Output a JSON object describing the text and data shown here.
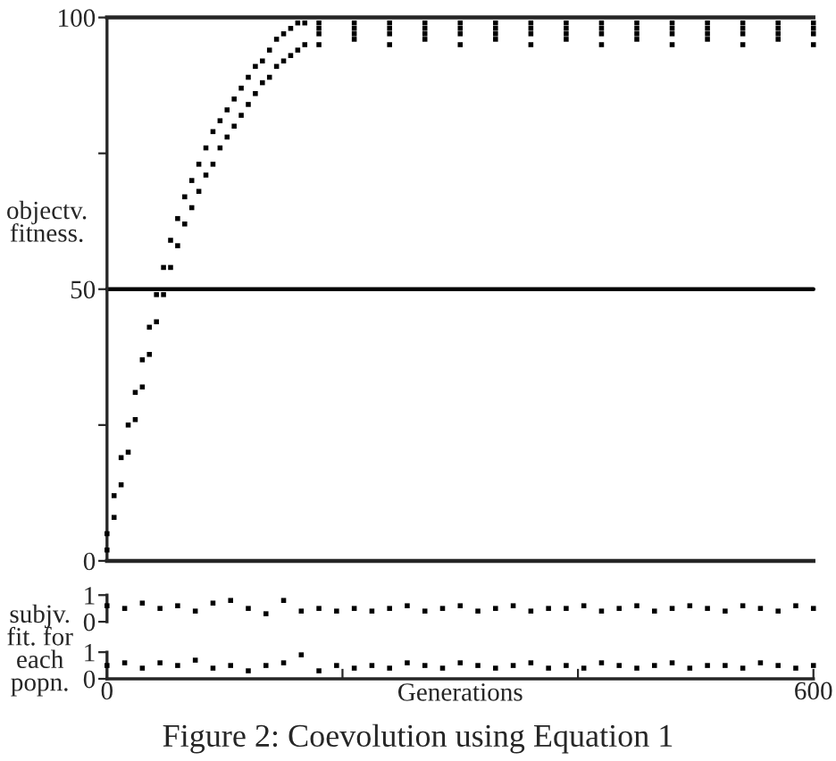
{
  "chart_data": [
    {
      "type": "scatter",
      "ylabel": "objectv.\nfitness.",
      "xlim": [
        0,
        600
      ],
      "ylim": [
        0,
        100
      ],
      "yticks": [
        0,
        {
          "value": 25,
          "label": null
        },
        50,
        {
          "value": 75,
          "label": null
        },
        100
      ],
      "tick_labels": "y",
      "marker": "square",
      "grid": false,
      "ref_lines": [
        {
          "axis": "y",
          "value": 50
        }
      ],
      "series": [
        {
          "color": "#000000",
          "x": [
            0,
            0,
            6,
            6,
            12,
            12,
            18,
            18,
            24,
            24,
            30,
            30,
            36,
            36,
            42,
            42,
            48,
            48,
            54,
            54,
            60,
            60,
            66,
            66,
            72,
            72,
            78,
            78,
            84,
            84,
            90,
            90,
            96,
            96,
            102,
            102,
            108,
            108,
            114,
            114,
            120,
            120,
            126,
            126,
            132,
            132,
            138,
            138,
            144,
            144,
            150,
            150,
            156,
            156,
            162,
            162,
            168,
            168,
            180,
            180,
            180,
            180,
            210,
            210,
            210,
            210,
            240,
            240,
            240,
            240,
            270,
            270,
            270,
            270,
            300,
            300,
            300,
            300,
            330,
            330,
            330,
            330,
            360,
            360,
            360,
            360,
            390,
            390,
            390,
            390,
            420,
            420,
            420,
            420,
            450,
            450,
            450,
            450,
            480,
            480,
            480,
            480,
            510,
            510,
            510,
            510,
            540,
            540,
            540,
            540,
            570,
            570,
            570,
            570,
            600,
            600,
            600,
            600
          ],
          "values": [
            2,
            5,
            8,
            12,
            14,
            19,
            20,
            25,
            26,
            31,
            32,
            37,
            38,
            43,
            44,
            49,
            49,
            54,
            54,
            59,
            58,
            63,
            62,
            67,
            65,
            70,
            68,
            73,
            71,
            76,
            73,
            79,
            76,
            81,
            78,
            83,
            80,
            85,
            82,
            87,
            84,
            89,
            86,
            91,
            88,
            92,
            89,
            94,
            91,
            96,
            92,
            97,
            93,
            98,
            94,
            99,
            95,
            99,
            99,
            98,
            97,
            95,
            99,
            98,
            97,
            96,
            99,
            98,
            97,
            95,
            99,
            98,
            97,
            96,
            99,
            98,
            97,
            95,
            99,
            98,
            97,
            96,
            99,
            98,
            97,
            95,
            99,
            98,
            97,
            96,
            99,
            98,
            97,
            95,
            99,
            98,
            97,
            96,
            99,
            98,
            97,
            95,
            99,
            98,
            97,
            96,
            99,
            98,
            97,
            95,
            99,
            98,
            97,
            96,
            99,
            98,
            97,
            95
          ]
        }
      ]
    },
    {
      "type": "scatter",
      "xlim": [
        0,
        600
      ],
      "ylim": [
        0,
        1
      ],
      "yticks": [
        0,
        1
      ],
      "tick_labels": "y",
      "marker": "square",
      "grid": false,
      "series": [
        {
          "color": "#000000",
          "x": [
            0,
            15,
            30,
            45,
            60,
            75,
            90,
            105,
            120,
            135,
            150,
            165,
            180,
            195,
            210,
            225,
            240,
            255,
            270,
            285,
            300,
            315,
            330,
            345,
            360,
            375,
            390,
            405,
            420,
            435,
            450,
            465,
            480,
            495,
            510,
            525,
            540,
            555,
            570,
            585,
            600
          ],
          "values": [
            0.6,
            0.5,
            0.7,
            0.5,
            0.6,
            0.4,
            0.7,
            0.8,
            0.5,
            0.3,
            0.8,
            0.4,
            0.5,
            0.4,
            0.5,
            0.4,
            0.5,
            0.6,
            0.4,
            0.5,
            0.6,
            0.4,
            0.5,
            0.6,
            0.4,
            0.5,
            0.5,
            0.6,
            0.4,
            0.5,
            0.6,
            0.4,
            0.5,
            0.6,
            0.5,
            0.4,
            0.6,
            0.5,
            0.4,
            0.6,
            0.5
          ]
        }
      ]
    },
    {
      "type": "scatter",
      "xlabel": "Generations",
      "ylabel": "subjv.\nfit. for\neach\npopn.",
      "xlim": [
        0,
        600
      ],
      "ylim": [
        0,
        1
      ],
      "yticks": [
        0,
        1
      ],
      "xticks": [
        0,
        {
          "value": 200,
          "label": null
        },
        {
          "value": 400,
          "label": null
        },
        600
      ],
      "marker": "square",
      "grid": false,
      "annotations": [
        "Figure 2: Coevolution using Equation 1"
      ],
      "series": [
        {
          "color": "#000000",
          "x": [
            0,
            15,
            30,
            45,
            60,
            75,
            90,
            105,
            120,
            135,
            150,
            165,
            180,
            195,
            210,
            225,
            240,
            255,
            270,
            285,
            300,
            315,
            330,
            345,
            360,
            375,
            390,
            405,
            420,
            435,
            450,
            465,
            480,
            495,
            510,
            525,
            540,
            555,
            570,
            585,
            600
          ],
          "values": [
            0.5,
            0.6,
            0.4,
            0.6,
            0.5,
            0.7,
            0.4,
            0.5,
            0.3,
            0.5,
            0.6,
            0.9,
            0.3,
            0.5,
            0.4,
            0.5,
            0.4,
            0.6,
            0.5,
            0.4,
            0.6,
            0.5,
            0.4,
            0.5,
            0.6,
            0.4,
            0.5,
            0.4,
            0.6,
            0.5,
            0.4,
            0.5,
            0.6,
            0.4,
            0.5,
            0.5,
            0.4,
            0.6,
            0.5,
            0.4,
            0.5
          ]
        }
      ]
    }
  ]
}
